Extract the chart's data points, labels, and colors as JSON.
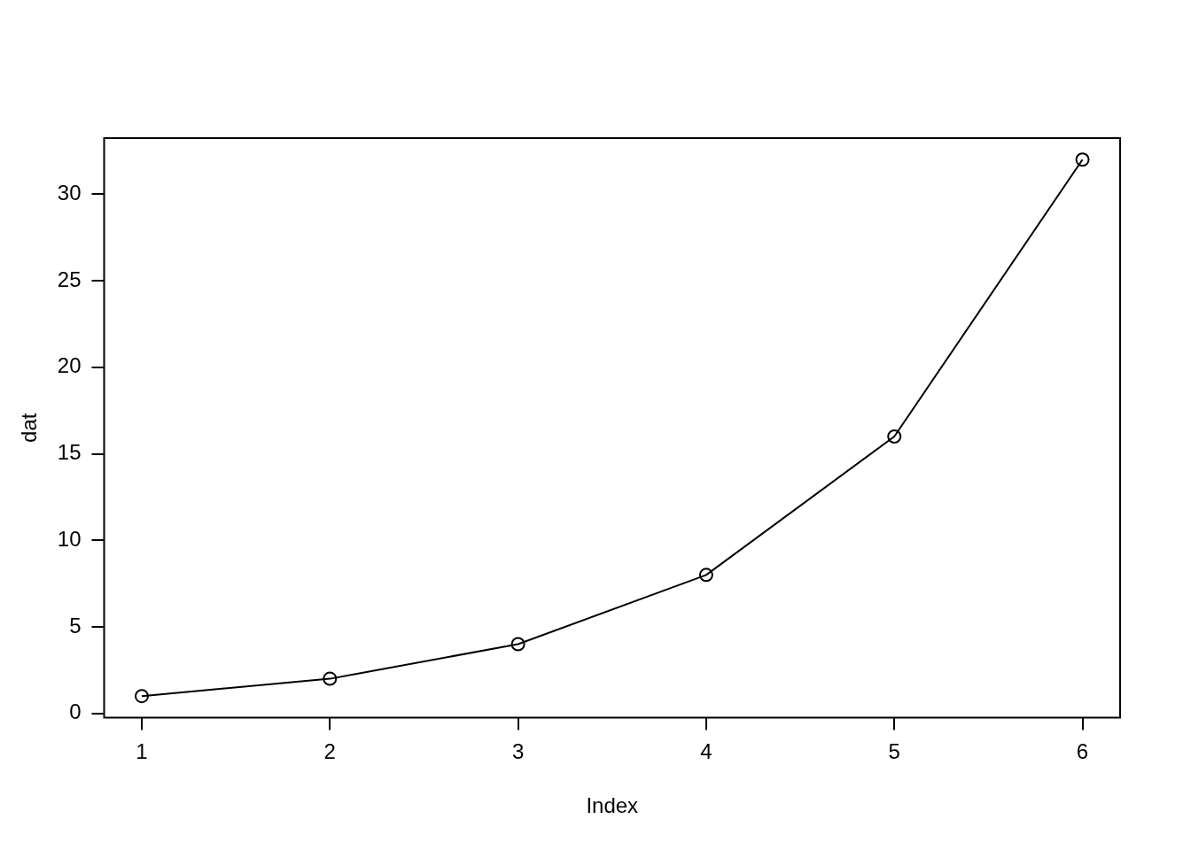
{
  "chart_data": {
    "type": "line",
    "xlabel": "Index",
    "ylabel": "dat",
    "x": [
      1,
      2,
      3,
      4,
      5,
      6
    ],
    "series": [
      {
        "color": "#000000",
        "values": [
          1,
          2,
          4,
          8,
          16,
          32
        ]
      }
    ],
    "xlim": [
      0.8,
      6.2
    ],
    "xticks": [
      1,
      2,
      3,
      4,
      5,
      6
    ],
    "ylim": [
      -0.24,
      33.24
    ],
    "yticks": [
      0,
      5,
      10,
      15,
      20,
      25,
      30
    ],
    "grid": false,
    "legend": false,
    "marker": "circle",
    "line_style": "solid"
  }
}
